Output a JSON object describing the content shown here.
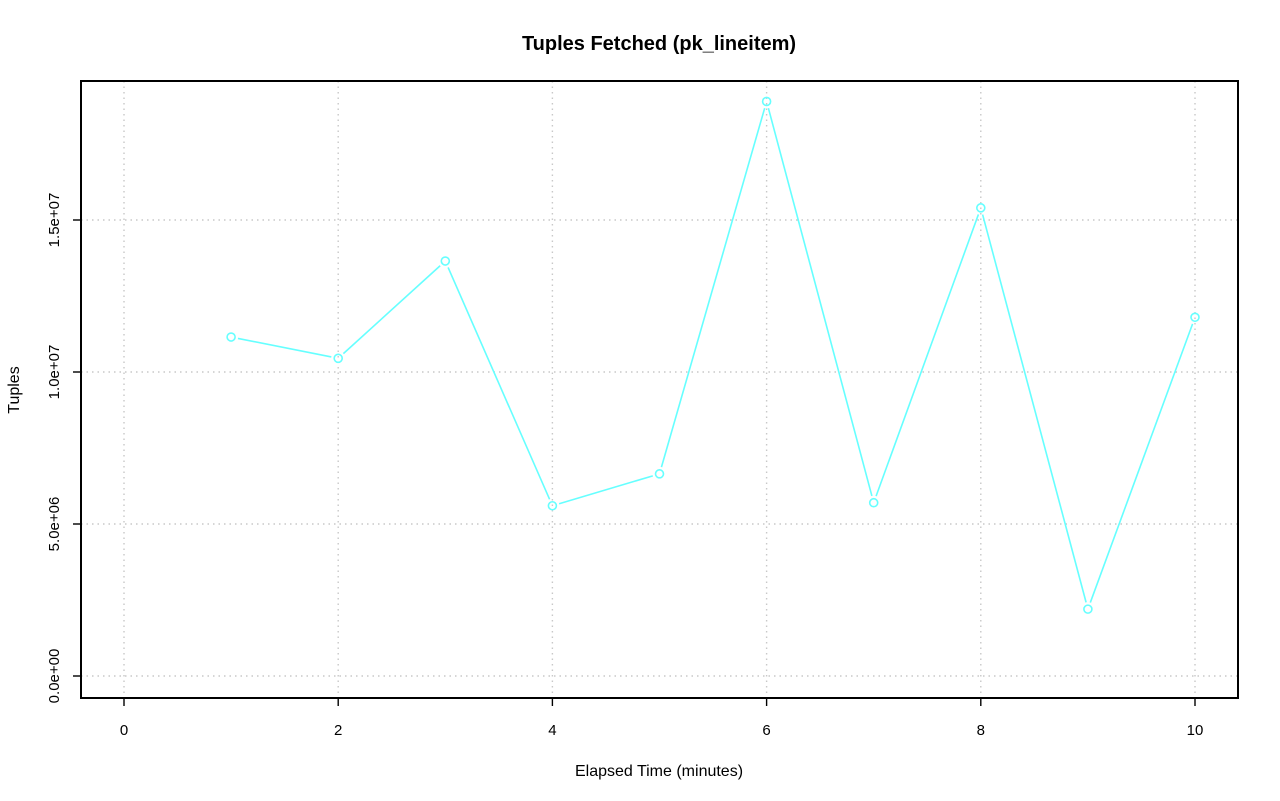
{
  "chart_data": {
    "type": "line",
    "title": "Tuples Fetched (pk_lineitem)",
    "xlabel": "Elapsed Time (minutes)",
    "ylabel": "Tuples",
    "xlim": [
      0,
      10
    ],
    "ylim": [
      0,
      19000000
    ],
    "x_ticks": [
      0,
      2,
      4,
      6,
      8,
      10
    ],
    "x_tick_labels": [
      "0",
      "2",
      "4",
      "6",
      "8",
      "10"
    ],
    "y_ticks": [
      0,
      5000000,
      10000000,
      15000000
    ],
    "y_tick_labels": [
      "0.0e+00",
      "5.0e+06",
      "1.0e+07",
      "1.5e+07"
    ],
    "grid": true,
    "series": [
      {
        "color": "#66ffff",
        "marker": "open-circle",
        "x": [
          1,
          2,
          3,
          4,
          5,
          6,
          7,
          8,
          9,
          10
        ],
        "values": [
          11150000,
          10450000,
          13650000,
          5600000,
          6650000,
          18900000,
          5700000,
          15400000,
          2200000,
          11800000
        ]
      }
    ]
  }
}
